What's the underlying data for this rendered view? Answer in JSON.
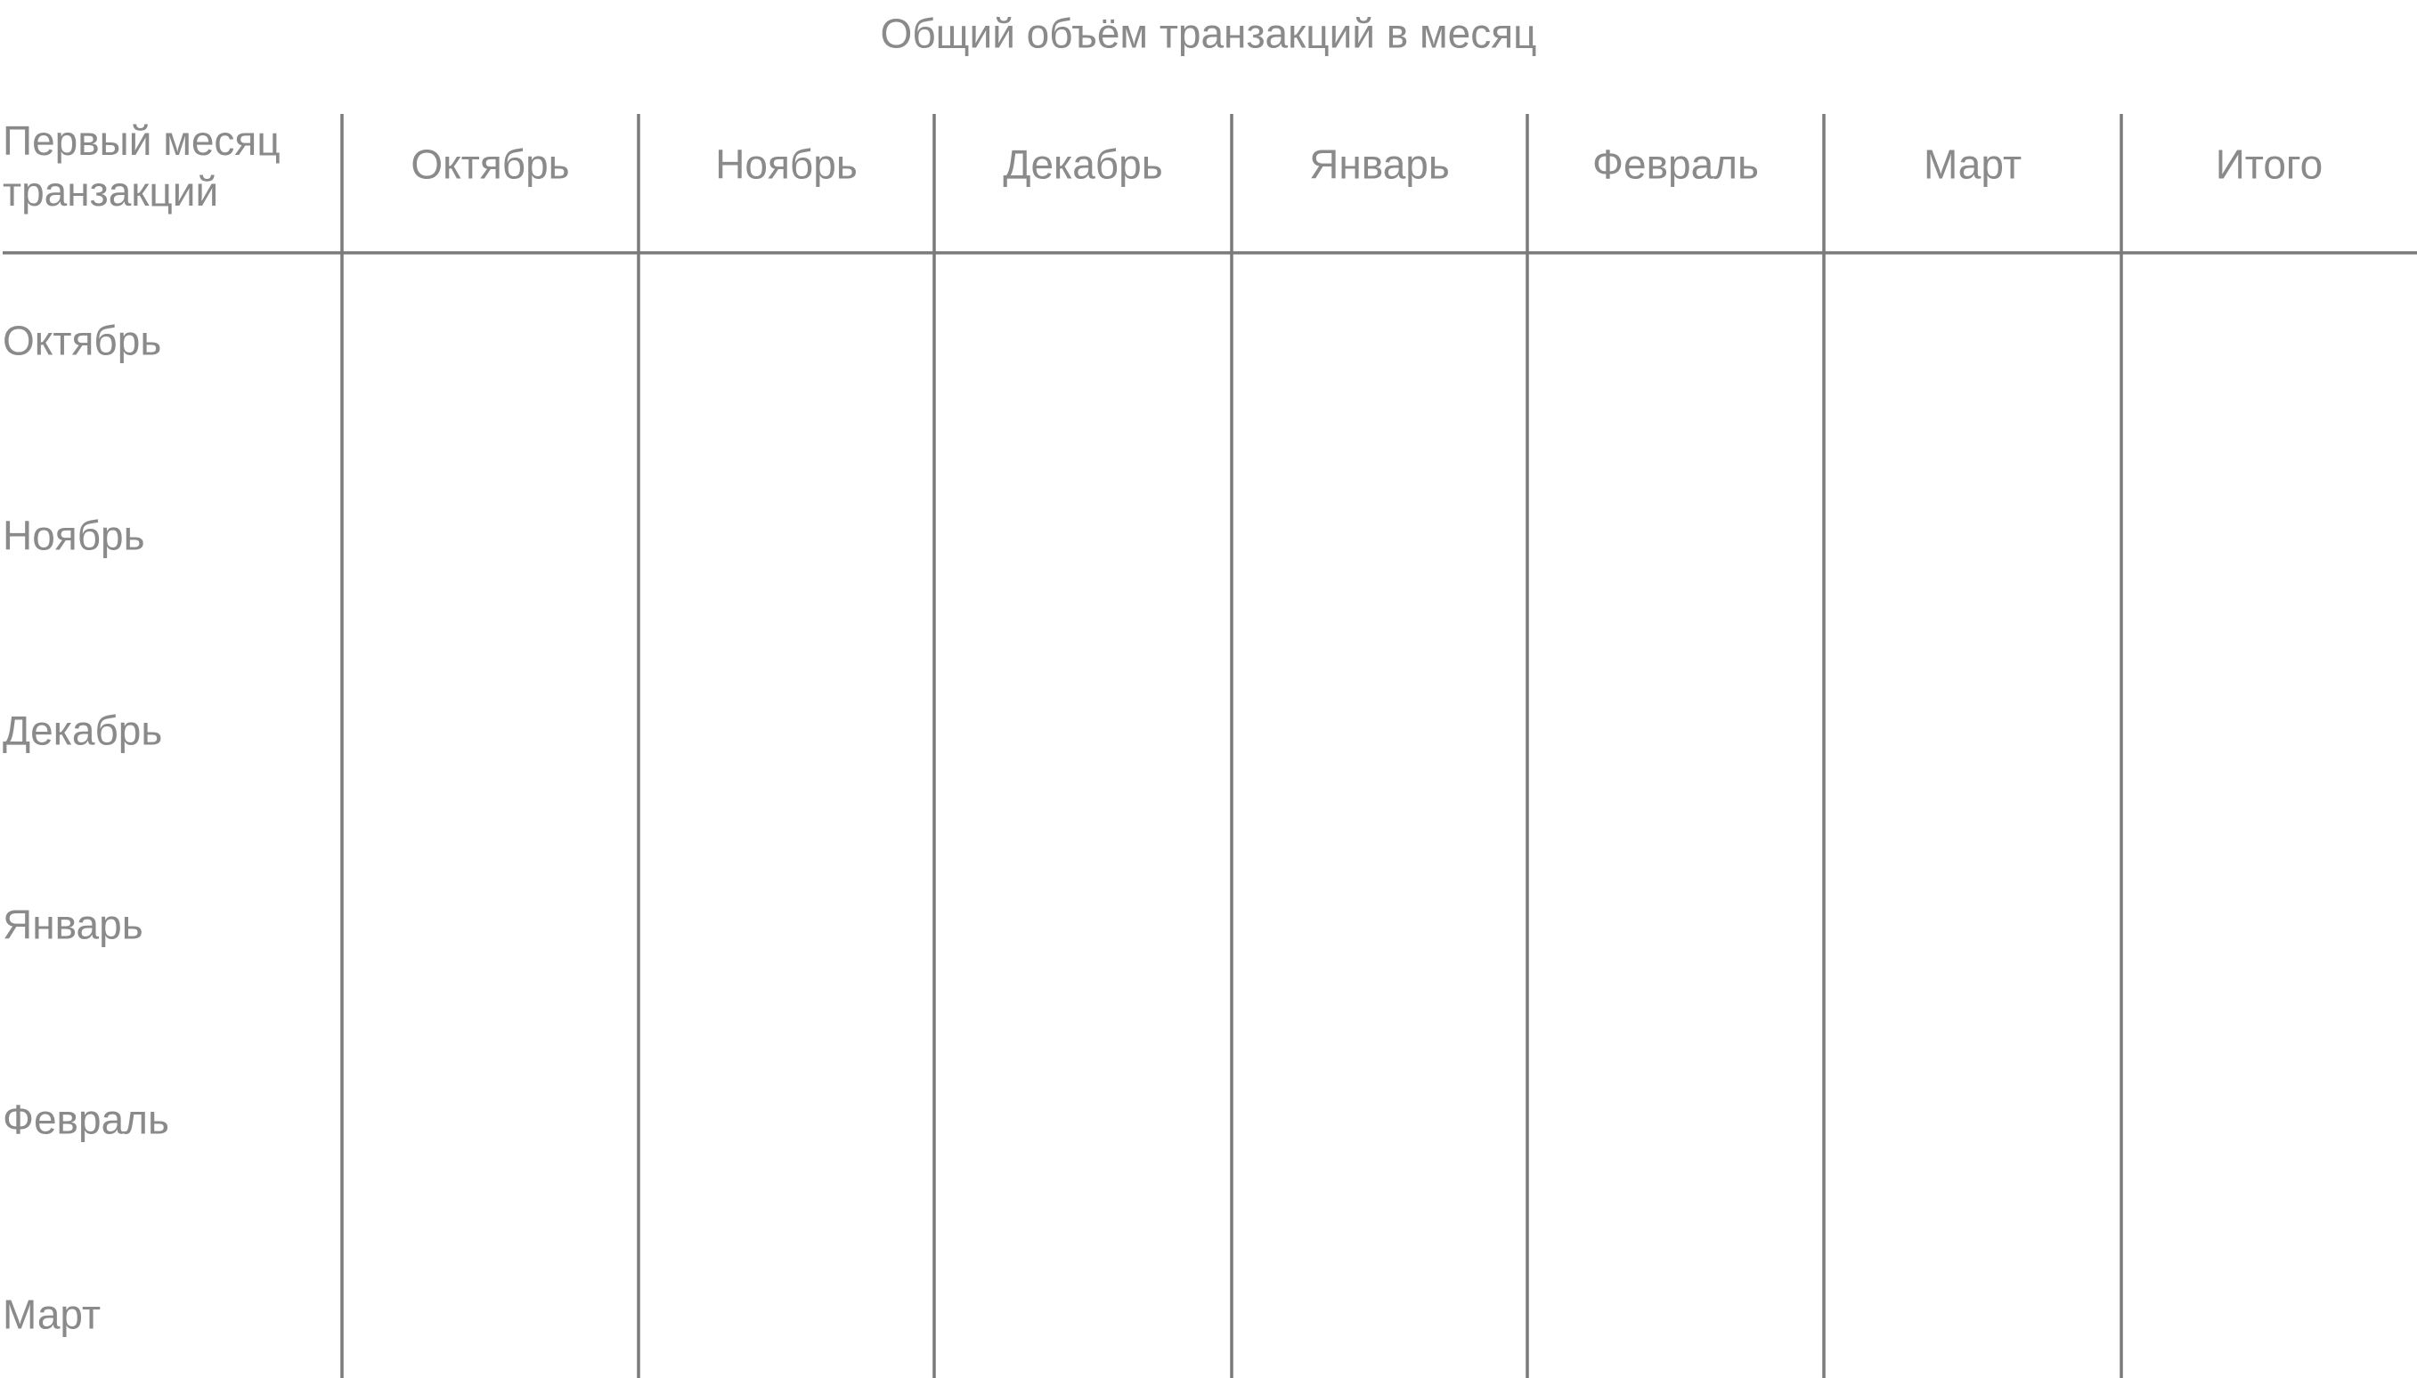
{
  "title": "Общий объём транзакций в месяц",
  "table": {
    "corner": "Первый месяц транзакций",
    "columns": [
      "Октябрь",
      "Ноябрь",
      "Декабрь",
      "Январь",
      "Февраль",
      "Март",
      "Итого"
    ],
    "rows": [
      "Октябрь",
      "Ноябрь",
      "Декабрь",
      "Январь",
      "Февраль",
      "Март"
    ]
  }
}
